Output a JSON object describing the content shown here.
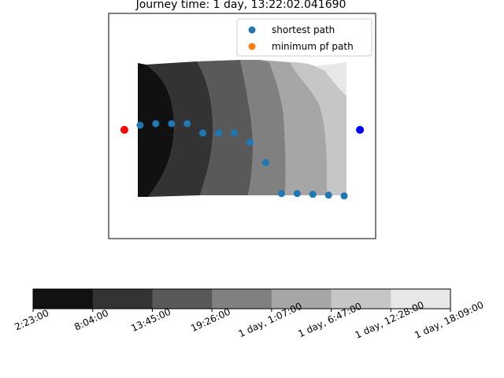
{
  "chart_data": [
    {
      "type": "scatter",
      "title": "Journey time: 1 day, 13:22:02.041690",
      "contour_levels": [
        {
          "color": "#111111"
        },
        {
          "color": "#333333"
        },
        {
          "color": "#595959"
        },
        {
          "color": "#808080"
        },
        {
          "color": "#a6a6a6"
        },
        {
          "color": "#c6c6c6"
        },
        {
          "color": "#e8e8e8"
        }
      ],
      "start_point": {
        "x": 0,
        "y": 0,
        "color": "#ff0000"
      },
      "end_point": {
        "x": 15,
        "y": 0,
        "color": "#0000ff"
      },
      "series": [
        {
          "name": "shortest path",
          "color": "#1f77b4",
          "points": [
            {
              "x": 1,
              "y": 0.3
            },
            {
              "x": 2,
              "y": 0.4
            },
            {
              "x": 3,
              "y": 0.4
            },
            {
              "x": 4,
              "y": 0.4
            },
            {
              "x": 5,
              "y": -0.2
            },
            {
              "x": 6,
              "y": -0.2
            },
            {
              "x": 7,
              "y": -0.2
            },
            {
              "x": 8,
              "y": -0.8
            },
            {
              "x": 9,
              "y": -2.1
            },
            {
              "x": 10,
              "y": -4.1
            },
            {
              "x": 11,
              "y": -4.1
            },
            {
              "x": 12,
              "y": -4.15
            },
            {
              "x": 13,
              "y": -4.2
            },
            {
              "x": 14,
              "y": -4.25
            }
          ]
        },
        {
          "name": "minimum pf path",
          "color": "#ff7f0e",
          "points": []
        }
      ],
      "xlim": [
        -1,
        16
      ],
      "ylim": [
        -7,
        7.5
      ],
      "legend_position": "top-right"
    },
    {
      "type": "colorbar",
      "orientation": "horizontal",
      "tick_labels": [
        "2:23:00",
        "8:04:00",
        "13:45:00",
        "19:26:00",
        "1 day, 1:07:00",
        "1 day, 6:47:00",
        "1 day, 12:28:00",
        "1 day, 18:09:00"
      ],
      "colors": [
        "#111111",
        "#333333",
        "#595959",
        "#808080",
        "#a6a6a6",
        "#c6c6c6",
        "#e8e8e8"
      ]
    }
  ]
}
